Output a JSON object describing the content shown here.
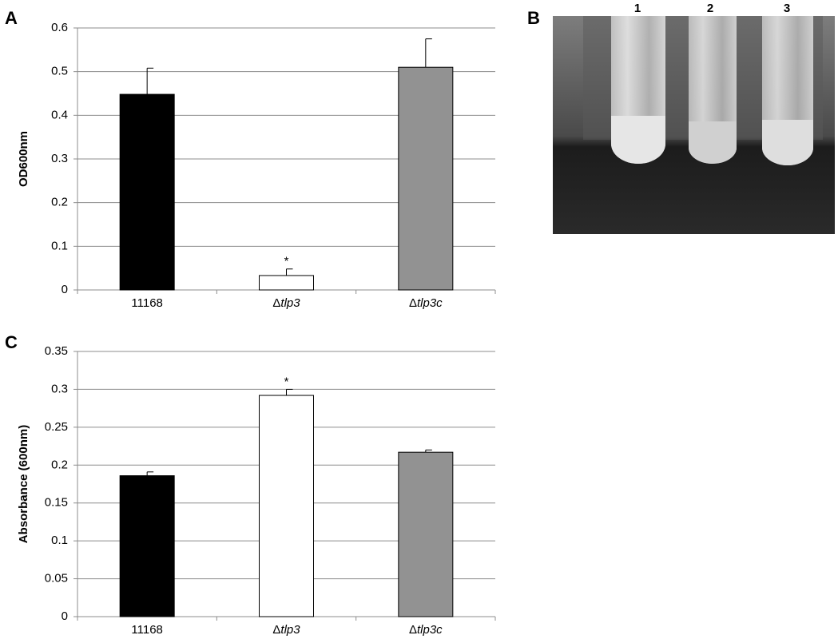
{
  "chart_data": [
    {
      "type": "bar",
      "panel": "A",
      "y_label": "OD600nm",
      "categories": [
        "11168",
        "Δtlp3",
        "Δtlp3c"
      ],
      "values": [
        0.448,
        0.033,
        0.51
      ],
      "errors": [
        0.06,
        0.015,
        0.065
      ],
      "colors": [
        "#000000",
        "#ffffff",
        "#929292"
      ],
      "annotations": [
        null,
        "*",
        null
      ],
      "ylim": [
        0,
        0.6
      ],
      "yticks": [
        0,
        0.1,
        0.2,
        0.3,
        0.4,
        0.5,
        0.6
      ],
      "grid": true
    },
    {
      "type": "bar",
      "panel": "C",
      "y_label": "Absorbance (600nm)",
      "categories": [
        "11168",
        "Δtlp3",
        "Δtlp3c"
      ],
      "values": [
        0.186,
        0.292,
        0.217
      ],
      "errors": [
        0.005,
        0.008,
        0.003
      ],
      "colors": [
        "#000000",
        "#ffffff",
        "#929292"
      ],
      "annotations": [
        null,
        "*",
        null
      ],
      "ylim": [
        0,
        0.35
      ],
      "yticks": [
        0,
        0.05,
        0.1,
        0.15,
        0.2,
        0.25,
        0.3,
        0.35
      ],
      "grid": true
    }
  ],
  "photo": {
    "panel": "B",
    "tube_labels": [
      "1",
      "2",
      "3"
    ]
  }
}
